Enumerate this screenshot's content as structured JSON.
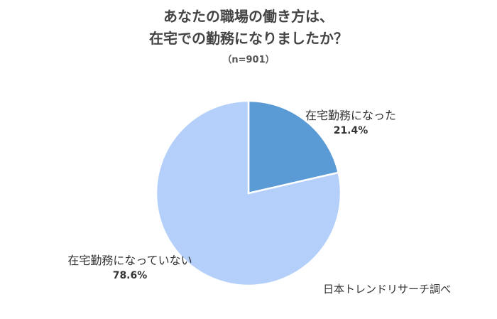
{
  "chart_data": {
    "type": "pie",
    "title_line1": "あなたの職場の働き方は、",
    "title_line2": "在宅での勤務になりましたか？",
    "subtitle": "（n=901）",
    "slices": [
      {
        "label": "在宅勤務になった",
        "value": 21.4,
        "value_label": "21.4%",
        "color": "#5b9bd5"
      },
      {
        "label": "在宅勤務になっていない",
        "value": 78.6,
        "value_label": "78.6%",
        "color": "#b4cffa"
      }
    ],
    "start_angle": "12 o'clock",
    "direction": "clockwise",
    "legend": "none"
  },
  "source": "日本トレンドリサーチ調べ"
}
